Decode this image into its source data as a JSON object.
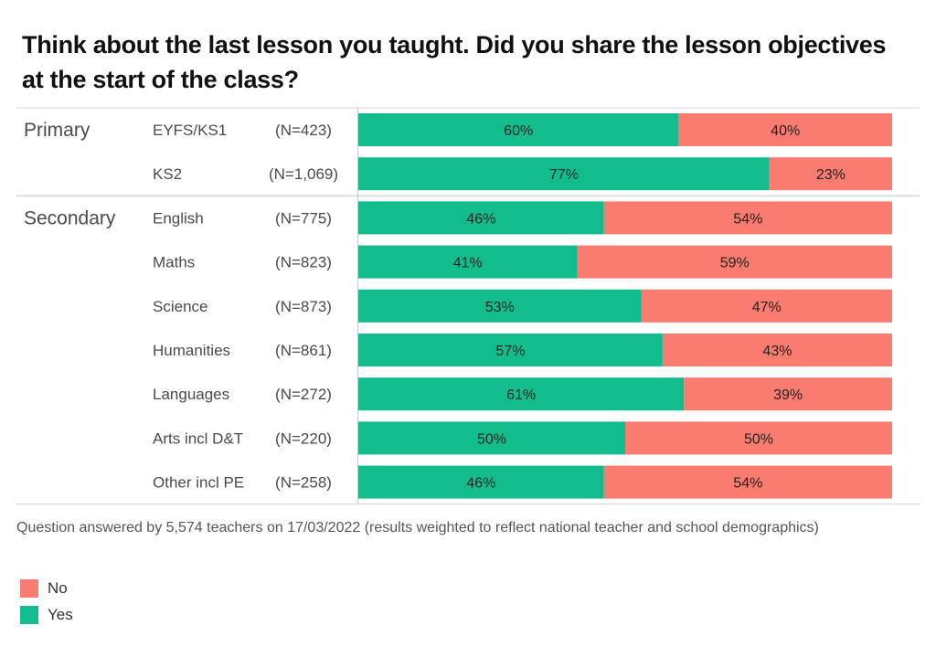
{
  "title": "Think about the last lesson you taught. Did you share the lesson objectives at the start of the class?",
  "note": "Question answered by 5,574 teachers on 17/03/2022 (results weighted to reflect national teacher and school demographics)",
  "colors": {
    "yes": "#12bc8c",
    "no": "#fa7b70"
  },
  "legend": [
    {
      "key": "no",
      "label": "No"
    },
    {
      "key": "yes",
      "label": "Yes"
    }
  ],
  "chart_data": {
    "type": "bar",
    "orientation": "horizontal",
    "stacked": true,
    "xlim": [
      0,
      100
    ],
    "groups": [
      {
        "name": "Primary",
        "rows": [
          {
            "label": "EYFS/KS1",
            "n": "(N=423)",
            "yes": 60,
            "no": 40
          },
          {
            "label": "KS2",
            "n": "(N=1,069)",
            "yes": 77,
            "no": 23
          }
        ]
      },
      {
        "name": "Secondary",
        "rows": [
          {
            "label": "English",
            "n": "(N=775)",
            "yes": 46,
            "no": 54
          },
          {
            "label": "Maths",
            "n": "(N=823)",
            "yes": 41,
            "no": 59
          },
          {
            "label": "Science",
            "n": "(N=873)",
            "yes": 53,
            "no": 47
          },
          {
            "label": "Humanities",
            "n": "(N=861)",
            "yes": 57,
            "no": 43
          },
          {
            "label": "Languages",
            "n": "(N=272)",
            "yes": 61,
            "no": 39
          },
          {
            "label": "Arts incl D&T",
            "n": "(N=220)",
            "yes": 50,
            "no": 50
          },
          {
            "label": "Other incl PE",
            "n": "(N=258)",
            "yes": 46,
            "no": 54
          }
        ]
      }
    ],
    "series": [
      {
        "name": "Yes",
        "key": "yes"
      },
      {
        "name": "No",
        "key": "no"
      }
    ],
    "legend_position": "bottom-left"
  }
}
